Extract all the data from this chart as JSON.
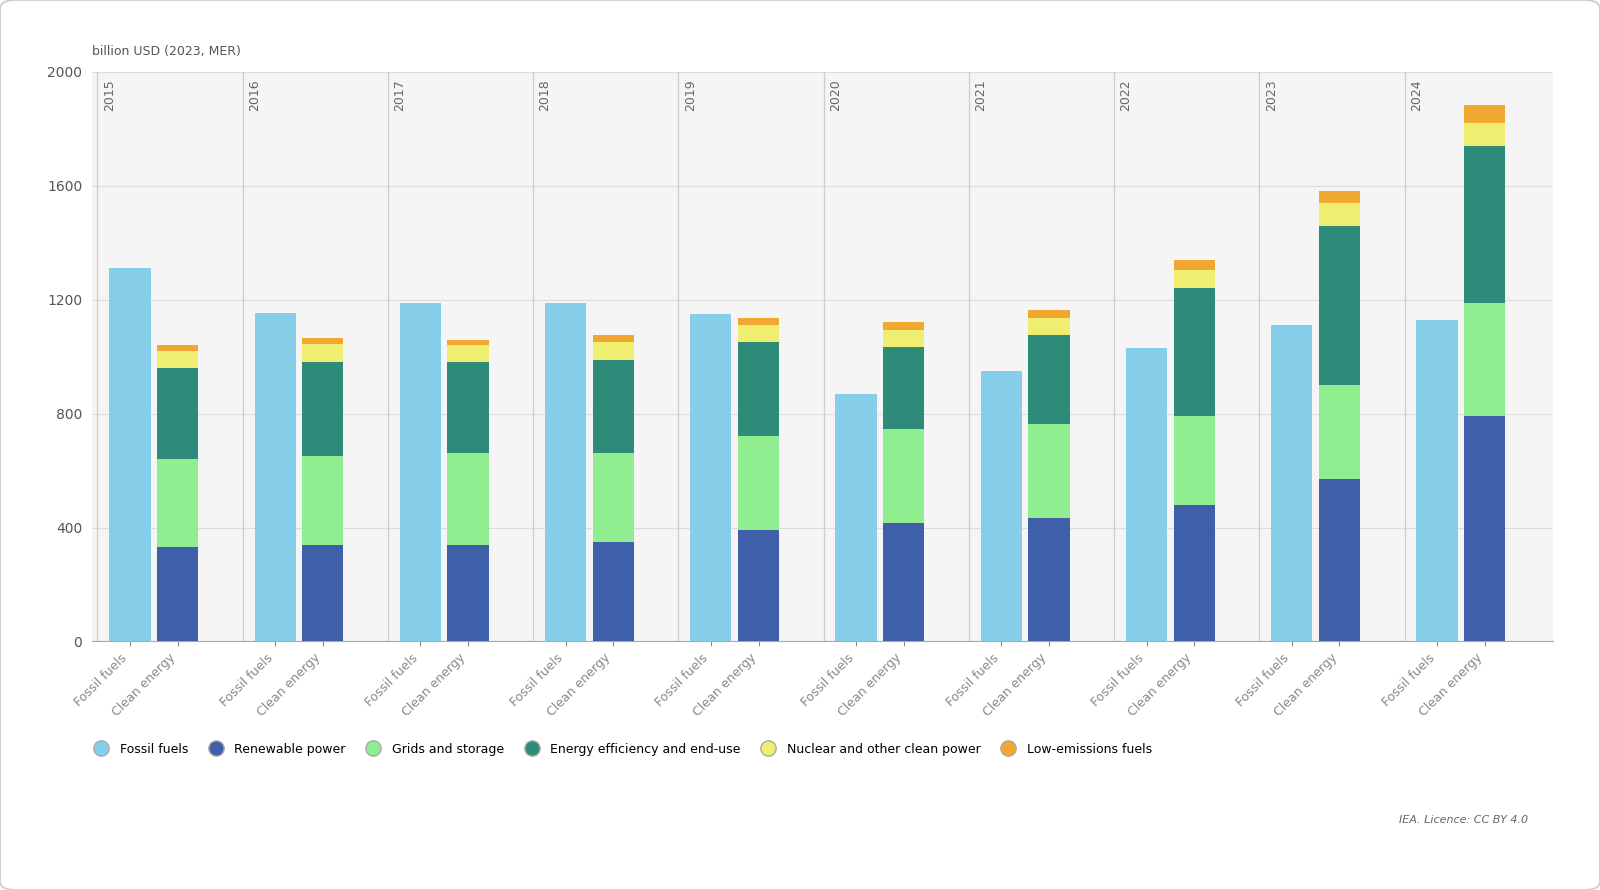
{
  "years": [
    2015,
    2016,
    2017,
    2018,
    2019,
    2020,
    2021,
    2022,
    2023,
    2024
  ],
  "fossil_fuels": [
    1310,
    1155,
    1190,
    1190,
    1150,
    870,
    950,
    1030,
    1110,
    1130
  ],
  "renewable_power": [
    330,
    340,
    340,
    350,
    390,
    415,
    435,
    480,
    570,
    790
  ],
  "grids_and_storage": [
    310,
    310,
    320,
    310,
    330,
    330,
    330,
    310,
    330,
    400
  ],
  "energy_efficiency": [
    320,
    330,
    320,
    330,
    330,
    290,
    310,
    450,
    560,
    550
  ],
  "nuclear_clean_power": [
    60,
    65,
    60,
    60,
    60,
    60,
    60,
    65,
    80,
    80
  ],
  "low_emissions_fuels": [
    20,
    20,
    20,
    25,
    25,
    25,
    30,
    35,
    40,
    65
  ],
  "colors": {
    "fossil_fuels": "#87CEEB",
    "renewable_power": "#3F5FA8",
    "grids_and_storage": "#90EE90",
    "energy_efficiency": "#2E8B7A",
    "nuclear_clean_power": "#F0EE70",
    "low_emissions_fuels": "#F0A830"
  },
  "ylabel": "billion USD (2023, MER)",
  "ylim": [
    0,
    2000
  ],
  "yticks": [
    0,
    400,
    800,
    1200,
    1600,
    2000
  ],
  "background_color": "#FFFFFF",
  "plot_bg_color": "#F5F5F5",
  "legend_labels": [
    "Fossil fuels",
    "Renewable power",
    "Grids and storage",
    "Energy efficiency and end-use",
    "Nuclear and other clean power",
    "Low-emissions fuels"
  ],
  "attribution": "IEA. Licence: CC BY 4.0"
}
